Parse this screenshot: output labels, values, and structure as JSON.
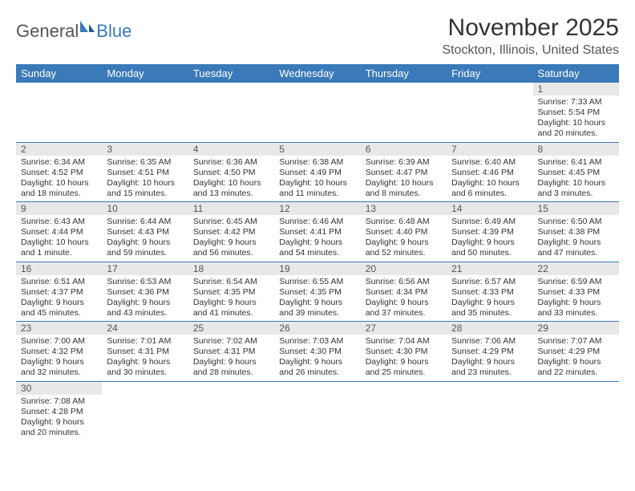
{
  "logo": {
    "general": "General",
    "blue": "Blue"
  },
  "title": "November 2025",
  "location": "Stockton, Illinois, United States",
  "day_headers": [
    "Sunday",
    "Monday",
    "Tuesday",
    "Wednesday",
    "Thursday",
    "Friday",
    "Saturday"
  ],
  "colors": {
    "header_bg": "#3a7ab8",
    "header_text": "#ffffff",
    "daynum_bg": "#e8e8e8",
    "border": "#3a7ab8",
    "text": "#333333",
    "logo_blue": "#3a7ab8",
    "logo_gray": "#555555"
  },
  "weeks": [
    [
      null,
      null,
      null,
      null,
      null,
      null,
      {
        "n": "1",
        "sunrise": "Sunrise: 7:33 AM",
        "sunset": "Sunset: 5:54 PM",
        "daylight": "Daylight: 10 hours and 20 minutes."
      }
    ],
    [
      {
        "n": "2",
        "sunrise": "Sunrise: 6:34 AM",
        "sunset": "Sunset: 4:52 PM",
        "daylight": "Daylight: 10 hours and 18 minutes."
      },
      {
        "n": "3",
        "sunrise": "Sunrise: 6:35 AM",
        "sunset": "Sunset: 4:51 PM",
        "daylight": "Daylight: 10 hours and 15 minutes."
      },
      {
        "n": "4",
        "sunrise": "Sunrise: 6:36 AM",
        "sunset": "Sunset: 4:50 PM",
        "daylight": "Daylight: 10 hours and 13 minutes."
      },
      {
        "n": "5",
        "sunrise": "Sunrise: 6:38 AM",
        "sunset": "Sunset: 4:49 PM",
        "daylight": "Daylight: 10 hours and 11 minutes."
      },
      {
        "n": "6",
        "sunrise": "Sunrise: 6:39 AM",
        "sunset": "Sunset: 4:47 PM",
        "daylight": "Daylight: 10 hours and 8 minutes."
      },
      {
        "n": "7",
        "sunrise": "Sunrise: 6:40 AM",
        "sunset": "Sunset: 4:46 PM",
        "daylight": "Daylight: 10 hours and 6 minutes."
      },
      {
        "n": "8",
        "sunrise": "Sunrise: 6:41 AM",
        "sunset": "Sunset: 4:45 PM",
        "daylight": "Daylight: 10 hours and 3 minutes."
      }
    ],
    [
      {
        "n": "9",
        "sunrise": "Sunrise: 6:43 AM",
        "sunset": "Sunset: 4:44 PM",
        "daylight": "Daylight: 10 hours and 1 minute."
      },
      {
        "n": "10",
        "sunrise": "Sunrise: 6:44 AM",
        "sunset": "Sunset: 4:43 PM",
        "daylight": "Daylight: 9 hours and 59 minutes."
      },
      {
        "n": "11",
        "sunrise": "Sunrise: 6:45 AM",
        "sunset": "Sunset: 4:42 PM",
        "daylight": "Daylight: 9 hours and 56 minutes."
      },
      {
        "n": "12",
        "sunrise": "Sunrise: 6:46 AM",
        "sunset": "Sunset: 4:41 PM",
        "daylight": "Daylight: 9 hours and 54 minutes."
      },
      {
        "n": "13",
        "sunrise": "Sunrise: 6:48 AM",
        "sunset": "Sunset: 4:40 PM",
        "daylight": "Daylight: 9 hours and 52 minutes."
      },
      {
        "n": "14",
        "sunrise": "Sunrise: 6:49 AM",
        "sunset": "Sunset: 4:39 PM",
        "daylight": "Daylight: 9 hours and 50 minutes."
      },
      {
        "n": "15",
        "sunrise": "Sunrise: 6:50 AM",
        "sunset": "Sunset: 4:38 PM",
        "daylight": "Daylight: 9 hours and 47 minutes."
      }
    ],
    [
      {
        "n": "16",
        "sunrise": "Sunrise: 6:51 AM",
        "sunset": "Sunset: 4:37 PM",
        "daylight": "Daylight: 9 hours and 45 minutes."
      },
      {
        "n": "17",
        "sunrise": "Sunrise: 6:53 AM",
        "sunset": "Sunset: 4:36 PM",
        "daylight": "Daylight: 9 hours and 43 minutes."
      },
      {
        "n": "18",
        "sunrise": "Sunrise: 6:54 AM",
        "sunset": "Sunset: 4:35 PM",
        "daylight": "Daylight: 9 hours and 41 minutes."
      },
      {
        "n": "19",
        "sunrise": "Sunrise: 6:55 AM",
        "sunset": "Sunset: 4:35 PM",
        "daylight": "Daylight: 9 hours and 39 minutes."
      },
      {
        "n": "20",
        "sunrise": "Sunrise: 6:56 AM",
        "sunset": "Sunset: 4:34 PM",
        "daylight": "Daylight: 9 hours and 37 minutes."
      },
      {
        "n": "21",
        "sunrise": "Sunrise: 6:57 AM",
        "sunset": "Sunset: 4:33 PM",
        "daylight": "Daylight: 9 hours and 35 minutes."
      },
      {
        "n": "22",
        "sunrise": "Sunrise: 6:59 AM",
        "sunset": "Sunset: 4:33 PM",
        "daylight": "Daylight: 9 hours and 33 minutes."
      }
    ],
    [
      {
        "n": "23",
        "sunrise": "Sunrise: 7:00 AM",
        "sunset": "Sunset: 4:32 PM",
        "daylight": "Daylight: 9 hours and 32 minutes."
      },
      {
        "n": "24",
        "sunrise": "Sunrise: 7:01 AM",
        "sunset": "Sunset: 4:31 PM",
        "daylight": "Daylight: 9 hours and 30 minutes."
      },
      {
        "n": "25",
        "sunrise": "Sunrise: 7:02 AM",
        "sunset": "Sunset: 4:31 PM",
        "daylight": "Daylight: 9 hours and 28 minutes."
      },
      {
        "n": "26",
        "sunrise": "Sunrise: 7:03 AM",
        "sunset": "Sunset: 4:30 PM",
        "daylight": "Daylight: 9 hours and 26 minutes."
      },
      {
        "n": "27",
        "sunrise": "Sunrise: 7:04 AM",
        "sunset": "Sunset: 4:30 PM",
        "daylight": "Daylight: 9 hours and 25 minutes."
      },
      {
        "n": "28",
        "sunrise": "Sunrise: 7:06 AM",
        "sunset": "Sunset: 4:29 PM",
        "daylight": "Daylight: 9 hours and 23 minutes."
      },
      {
        "n": "29",
        "sunrise": "Sunrise: 7:07 AM",
        "sunset": "Sunset: 4:29 PM",
        "daylight": "Daylight: 9 hours and 22 minutes."
      }
    ],
    [
      {
        "n": "30",
        "sunrise": "Sunrise: 7:08 AM",
        "sunset": "Sunset: 4:28 PM",
        "daylight": "Daylight: 9 hours and 20 minutes."
      },
      null,
      null,
      null,
      null,
      null,
      null
    ]
  ]
}
